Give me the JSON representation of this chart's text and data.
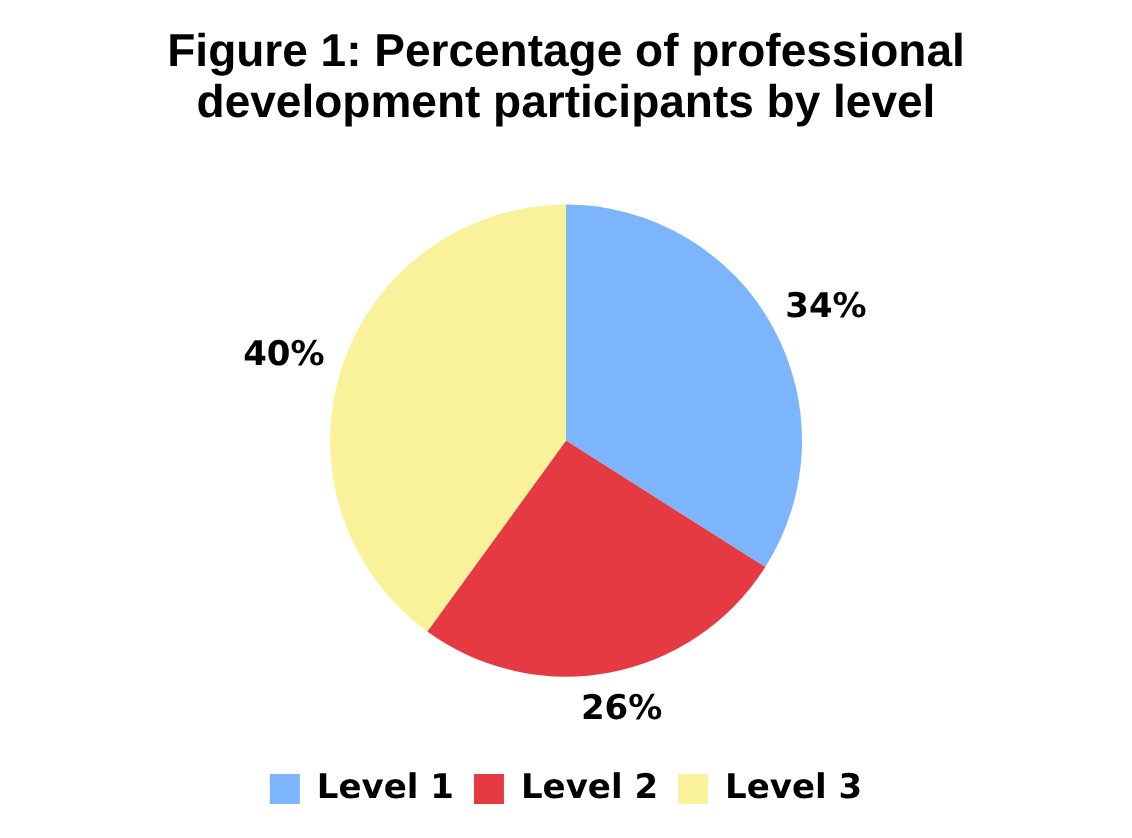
{
  "chart_data": {
    "type": "pie",
    "title": "Figure 1: Percentage of professional development participants by level",
    "categories": [
      "Level 1",
      "Level 2",
      "Level 3"
    ],
    "values": [
      34,
      26,
      40
    ],
    "colors": [
      "#7cb5fc",
      "#e53a42",
      "#faf29a"
    ],
    "value_labels": [
      "34%",
      "26%",
      "40%"
    ],
    "legend": "bottom"
  }
}
